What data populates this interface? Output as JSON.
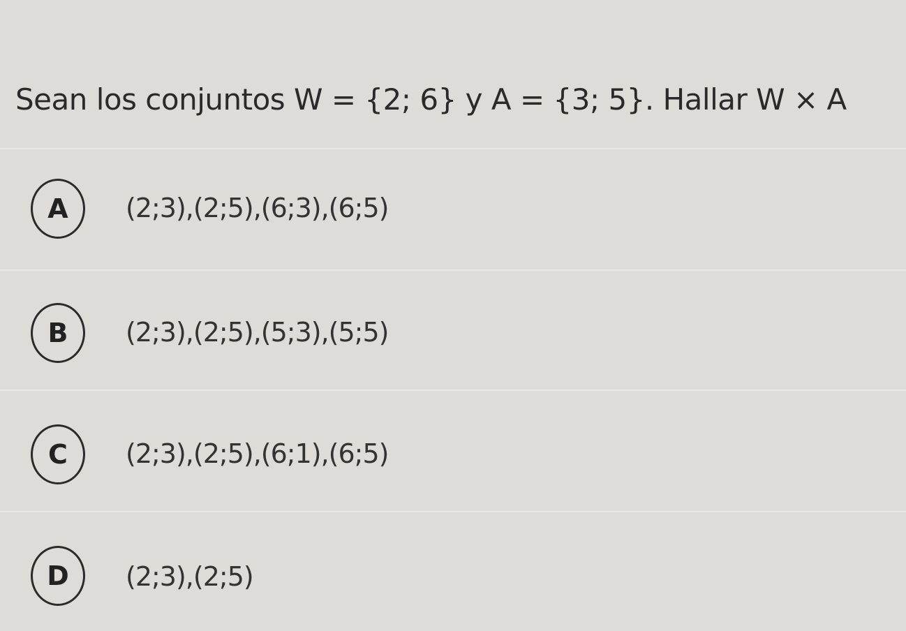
{
  "question": {
    "text": "Sean los conjuntos W = {2; 6} y A = {3; 5}. Hallar W × A"
  },
  "options": [
    {
      "letter": "A",
      "text": "(2;3),(2;5),(6;3),(6;5)"
    },
    {
      "letter": "B",
      "text": "(2;3),(2;5),(5;3),(5;5)"
    },
    {
      "letter": "C",
      "text": "(2;3),(2;5),(6;1),(6;5)"
    },
    {
      "letter": "D",
      "text": "(2;3),(2;5)"
    }
  ]
}
